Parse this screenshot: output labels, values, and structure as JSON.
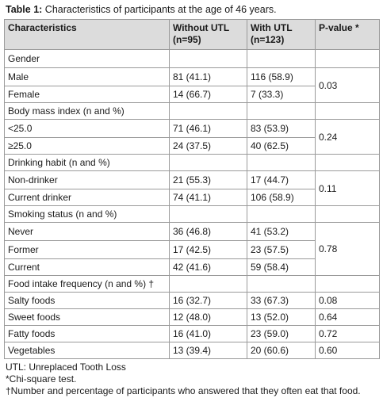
{
  "caption": {
    "label": "Table 1:",
    "text": " Characteristics of participants at the age of 46 years."
  },
  "header": {
    "characteristics": "Characteristics",
    "without_utl": "Without UTL (n=95)",
    "with_utl": "With UTL (n=123)",
    "p_value": "P-value *"
  },
  "groups": {
    "gender": "Gender",
    "bmi": "Body mass index (n and %)",
    "drinking": "Drinking habit (n and %)",
    "smoking": "Smoking status (n and %)",
    "food": "Food intake frequency (n and %) †"
  },
  "rows": {
    "male": {
      "label": "Male",
      "without": "81 (41.1)",
      "with": "116 (58.9)"
    },
    "female": {
      "label": "Female",
      "without": "14 (66.7)",
      "with": "7 (33.3)"
    },
    "bmi_lt25": {
      "label": "<25.0",
      "without": "71 (46.1)",
      "with": "83 (53.9)"
    },
    "bmi_ge25": {
      "label": "≥25.0",
      "without": "24 (37.5)",
      "with": "40 (62.5)"
    },
    "non_drinker": {
      "label": "Non-drinker",
      "without": "21 (55.3)",
      "with": "17 (44.7)"
    },
    "current_drinker": {
      "label": "Current drinker",
      "without": "74 (41.1)",
      "with": "106 (58.9)"
    },
    "never": {
      "label": "Never",
      "without": "36 (46.8)",
      "with": "41 (53.2)"
    },
    "former": {
      "label": "Former",
      "without": "17 (42.5)",
      "with": "23 (57.5)"
    },
    "current": {
      "label": "Current",
      "without": "42 (41.6)",
      "with": "59 (58.4)"
    },
    "salty": {
      "label": "Salty foods",
      "without": "16 (32.7)",
      "with": "33 (67.3)",
      "p": "0.08"
    },
    "sweet": {
      "label": "Sweet foods",
      "without": "12 (48.0)",
      "with": "13 (52.0)",
      "p": "0.64"
    },
    "fatty": {
      "label": "Fatty foods",
      "without": "16 (41.0)",
      "with": "23 (59.0)",
      "p": "0.72"
    },
    "veg": {
      "label": "Vegetables",
      "without": "13 (39.4)",
      "with": "20 (60.6)",
      "p": "0.60"
    }
  },
  "pvalues": {
    "gender": "0.03",
    "bmi": "0.24",
    "drinking": "0.11",
    "smoking": "0.78"
  },
  "footnotes": {
    "utl": "UTL: Unreplaced Tooth Loss",
    "chi": "*Chi-square test.",
    "dagger": "†Number and percentage of participants who answered that they often eat that food."
  }
}
